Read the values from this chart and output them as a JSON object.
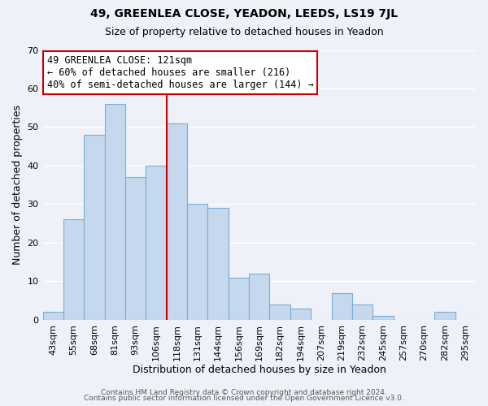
{
  "title": "49, GREENLEA CLOSE, YEADON, LEEDS, LS19 7JL",
  "subtitle": "Size of property relative to detached houses in Yeadon",
  "xlabel": "Distribution of detached houses by size in Yeadon",
  "ylabel": "Number of detached properties",
  "footer_line1": "Contains HM Land Registry data © Crown copyright and database right 2024.",
  "footer_line2": "Contains public sector information licensed under the Open Government Licence v3.0.",
  "bins": [
    "43sqm",
    "55sqm",
    "68sqm",
    "81sqm",
    "93sqm",
    "106sqm",
    "118sqm",
    "131sqm",
    "144sqm",
    "156sqm",
    "169sqm",
    "182sqm",
    "194sqm",
    "207sqm",
    "219sqm",
    "232sqm",
    "245sqm",
    "257sqm",
    "270sqm",
    "282sqm",
    "295sqm"
  ],
  "values": [
    2,
    26,
    48,
    56,
    37,
    40,
    51,
    30,
    29,
    11,
    12,
    4,
    3,
    0,
    7,
    4,
    1,
    0,
    0,
    2,
    0
  ],
  "bar_color": "#c5d8ee",
  "bar_edge_color": "#7aadd4",
  "highlight_line_index": 6,
  "highlight_line_color": "#cc0000",
  "annotation_line1": "49 GREENLEA CLOSE: 121sqm",
  "annotation_line2": "← 60% of detached houses are smaller (216)",
  "annotation_line3": "40% of semi-detached houses are larger (144) →",
  "ylim": [
    0,
    70
  ],
  "yticks": [
    0,
    10,
    20,
    30,
    40,
    50,
    60,
    70
  ],
  "bg_color": "#eef2f8",
  "grid_color": "#ffffff",
  "title_fontsize": 10,
  "subtitle_fontsize": 9,
  "annotation_fontsize": 8.5,
  "xlabel_fontsize": 9,
  "ylabel_fontsize": 9,
  "tick_fontsize": 8,
  "footer_fontsize": 6.5
}
